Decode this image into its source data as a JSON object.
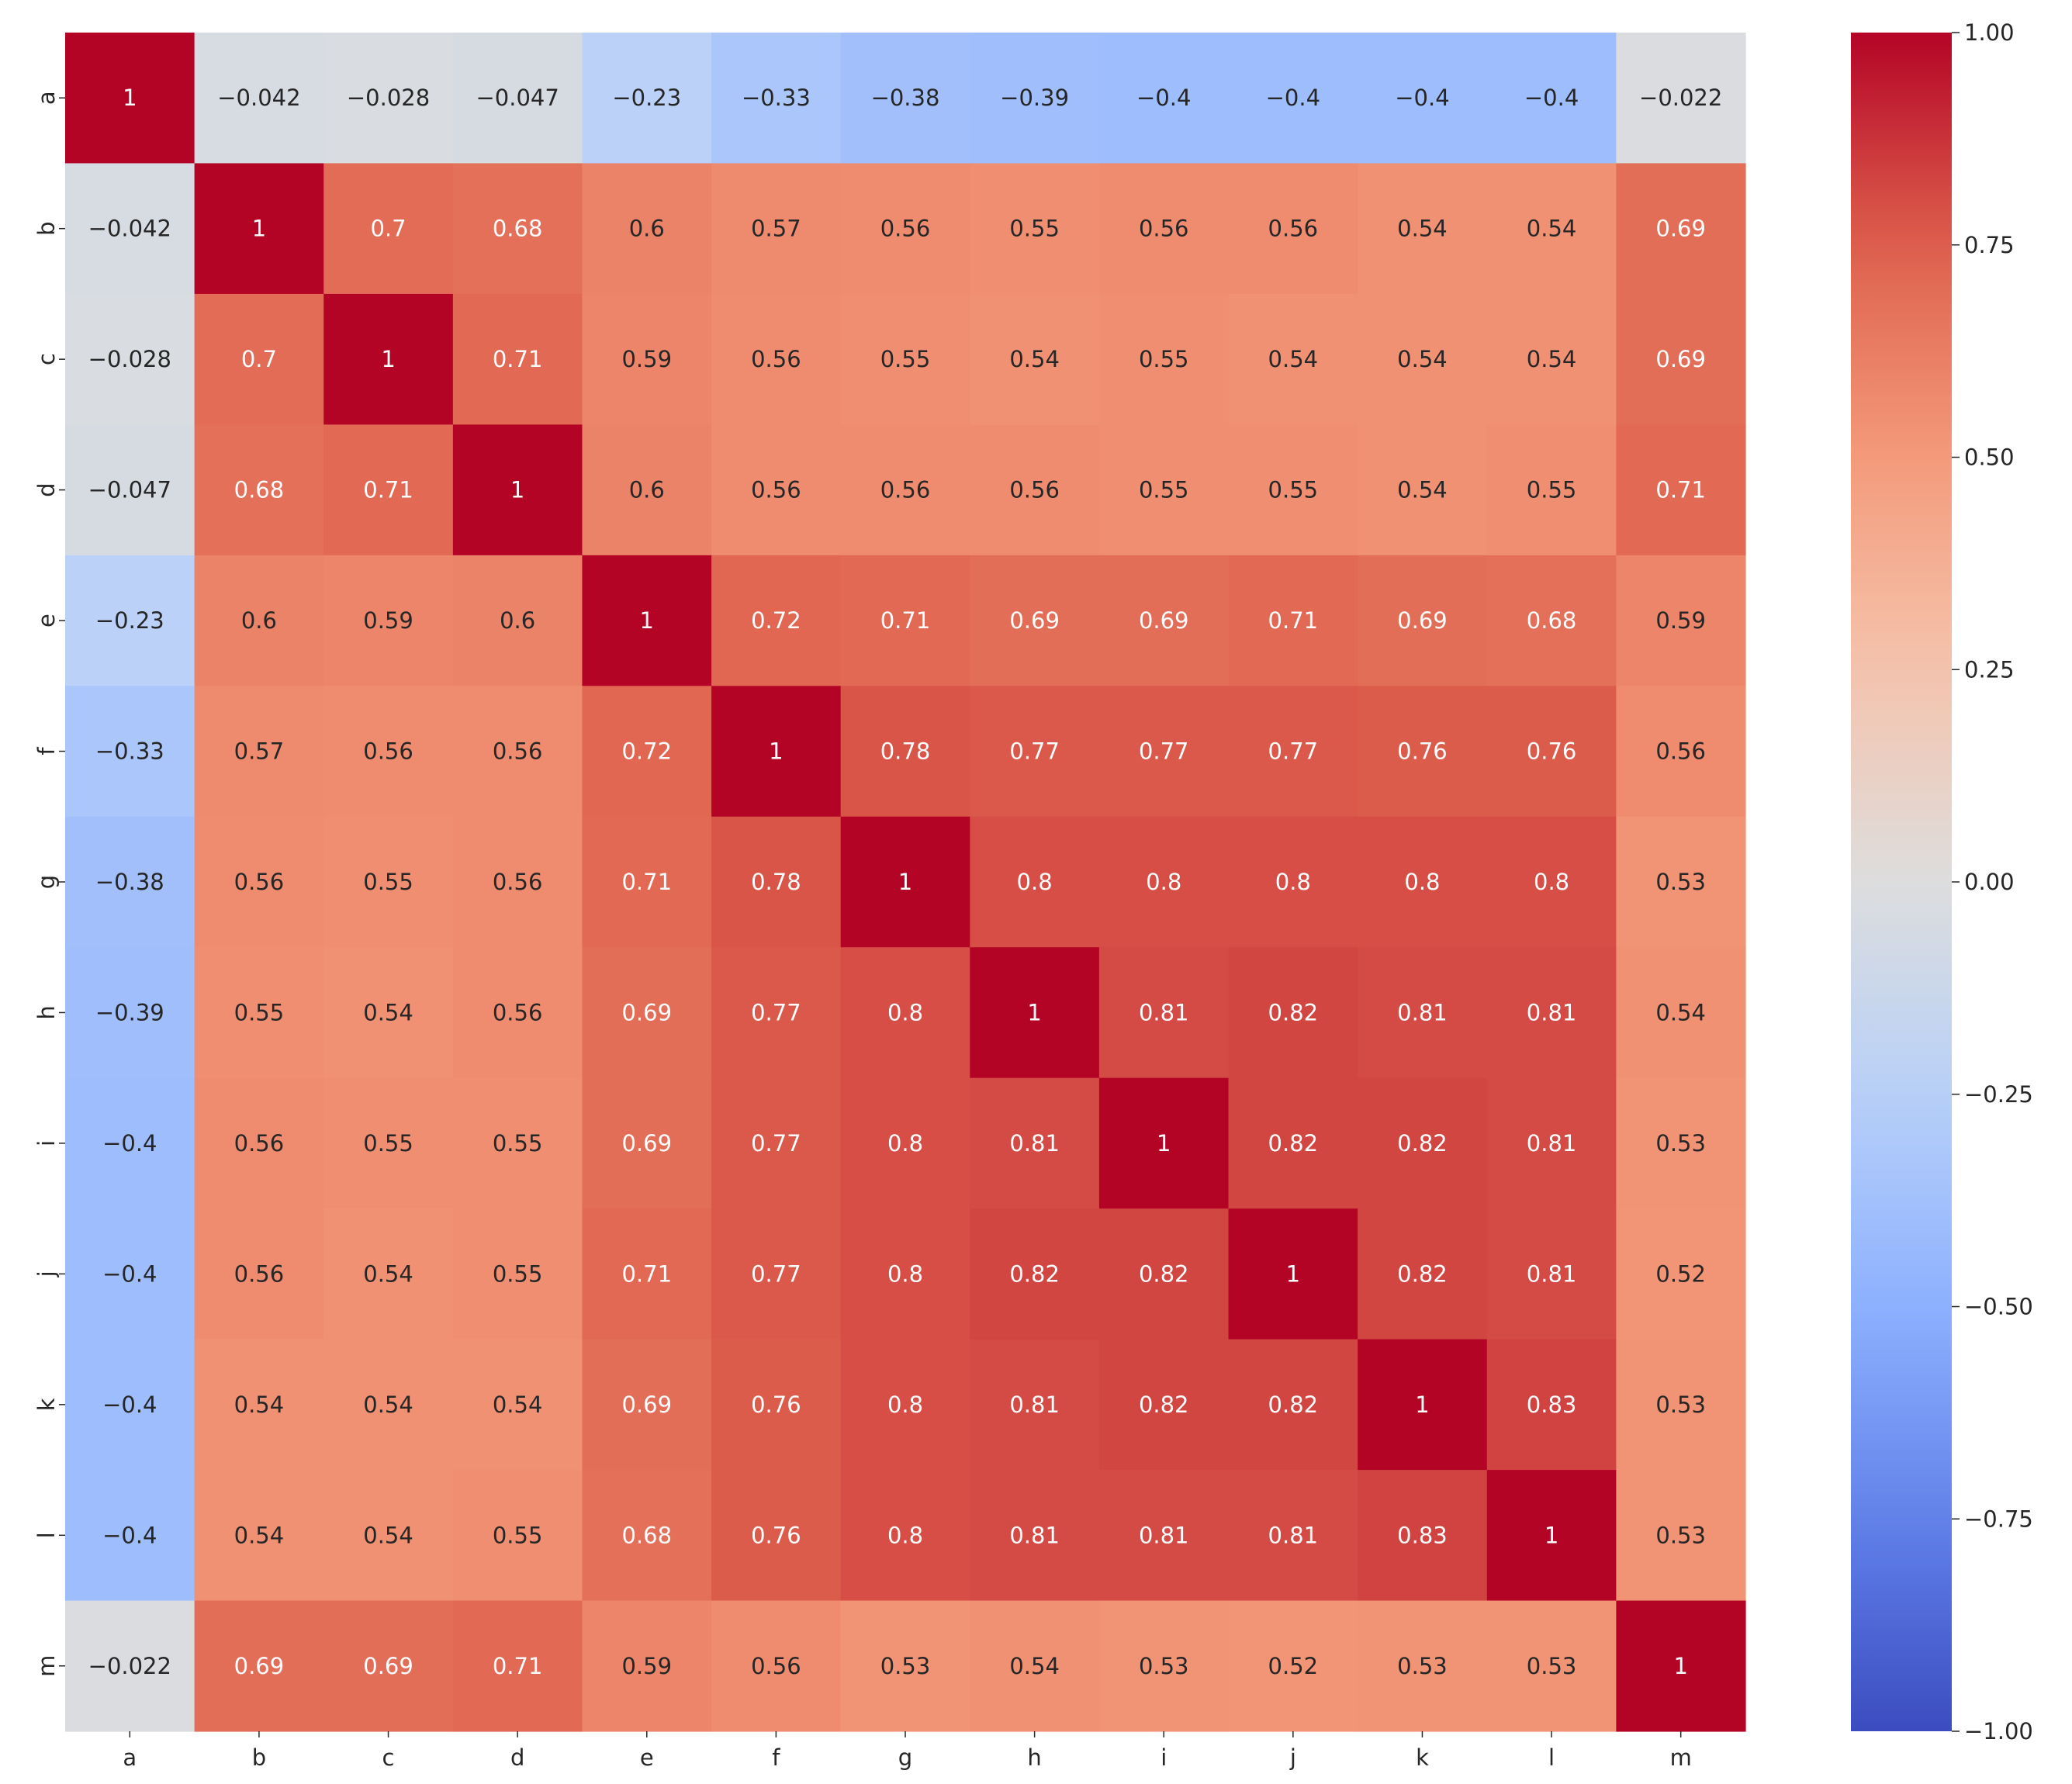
{
  "chart_data": {
    "type": "heatmap",
    "title": "",
    "xlabel": "",
    "ylabel": "",
    "row_labels": [
      "a",
      "b",
      "c",
      "d",
      "e",
      "f",
      "g",
      "h",
      "i",
      "j",
      "k",
      "l",
      "m"
    ],
    "col_labels": [
      "a",
      "b",
      "c",
      "d",
      "e",
      "f",
      "g",
      "h",
      "i",
      "j",
      "k",
      "l",
      "m"
    ],
    "values": [
      [
        1,
        -0.042,
        -0.028,
        -0.047,
        -0.23,
        -0.33,
        -0.38,
        -0.39,
        -0.4,
        -0.4,
        -0.4,
        -0.4,
        -0.022
      ],
      [
        -0.042,
        1,
        0.7,
        0.68,
        0.6,
        0.57,
        0.56,
        0.55,
        0.56,
        0.56,
        0.54,
        0.54,
        0.69
      ],
      [
        -0.028,
        0.7,
        1,
        0.71,
        0.59,
        0.56,
        0.55,
        0.54,
        0.55,
        0.54,
        0.54,
        0.54,
        0.69
      ],
      [
        -0.047,
        0.68,
        0.71,
        1,
        0.6,
        0.56,
        0.56,
        0.56,
        0.55,
        0.55,
        0.54,
        0.55,
        0.71
      ],
      [
        -0.23,
        0.6,
        0.59,
        0.6,
        1,
        0.72,
        0.71,
        0.69,
        0.69,
        0.71,
        0.69,
        0.68,
        0.59
      ],
      [
        -0.33,
        0.57,
        0.56,
        0.56,
        0.72,
        1,
        0.78,
        0.77,
        0.77,
        0.77,
        0.76,
        0.76,
        0.56
      ],
      [
        -0.38,
        0.56,
        0.55,
        0.56,
        0.71,
        0.78,
        1,
        0.8,
        0.8,
        0.8,
        0.8,
        0.8,
        0.53
      ],
      [
        -0.39,
        0.55,
        0.54,
        0.56,
        0.69,
        0.77,
        0.8,
        1,
        0.81,
        0.82,
        0.81,
        0.81,
        0.54
      ],
      [
        -0.4,
        0.56,
        0.55,
        0.55,
        0.69,
        0.77,
        0.8,
        0.81,
        1,
        0.82,
        0.82,
        0.81,
        0.53
      ],
      [
        -0.4,
        0.56,
        0.54,
        0.55,
        0.71,
        0.77,
        0.8,
        0.82,
        0.82,
        1,
        0.82,
        0.81,
        0.52
      ],
      [
        -0.4,
        0.54,
        0.54,
        0.54,
        0.69,
        0.76,
        0.8,
        0.81,
        0.82,
        0.82,
        1,
        0.83,
        0.53
      ],
      [
        -0.4,
        0.54,
        0.54,
        0.55,
        0.68,
        0.76,
        0.8,
        0.81,
        0.81,
        0.81,
        0.83,
        1,
        0.53
      ],
      [
        -0.022,
        0.69,
        0.69,
        0.71,
        0.59,
        0.56,
        0.53,
        0.54,
        0.53,
        0.52,
        0.53,
        0.53,
        1
      ]
    ],
    "colormap": "coolwarm",
    "vmin": -1.0,
    "vmax": 1.0,
    "colorbar": {
      "ticks": [
        1.0,
        0.75,
        0.5,
        0.25,
        0.0,
        -0.25,
        -0.5,
        -0.75,
        -1.0
      ],
      "tick_labels": [
        "1.00",
        "0.75",
        "0.50",
        "0.25",
        "0.00",
        "−0.25",
        "−0.50",
        "−0.75",
        "−1.00"
      ]
    },
    "grid": false,
    "legend": "colorbar-right"
  }
}
